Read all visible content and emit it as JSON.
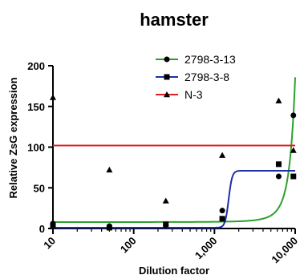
{
  "chart_data": {
    "type": "scatter",
    "title": "hamster",
    "xlabel": "Dilution factor",
    "ylabel": "Relative ZsG expression",
    "x_scale": "log",
    "xlim": [
      10,
      10000
    ],
    "ylim": [
      0,
      200
    ],
    "x_ticks": [
      10,
      100,
      1000,
      10000
    ],
    "x_tick_labels": [
      "10",
      "100",
      "1,000",
      "10,000"
    ],
    "y_ticks": [
      0,
      50,
      100,
      150,
      200
    ],
    "y_tick_labels": [
      "0",
      "50",
      "100",
      "150",
      "200"
    ],
    "grid": false,
    "legend_position": "top-right",
    "series": [
      {
        "name": "2798-3-13",
        "color": "#2ca02c",
        "marker": "circle",
        "points": [
          {
            "x": 10,
            "y": 6
          },
          {
            "x": 50,
            "y": 3
          },
          {
            "x": 250,
            "y": 4
          },
          {
            "x": 1250,
            "y": 22
          },
          {
            "x": 6250,
            "y": 64
          },
          {
            "x": 9500,
            "y": 139
          }
        ],
        "fit": "exponential",
        "fit_params": {
          "baseline": 7.5,
          "amplitude": 0.4,
          "rate": 0.00061
        }
      },
      {
        "name": "2798-3-8",
        "color": "#1f2fa8",
        "marker": "square",
        "points": [
          {
            "x": 10,
            "y": 4
          },
          {
            "x": 50,
            "y": 1
          },
          {
            "x": 250,
            "y": 5
          },
          {
            "x": 1250,
            "y": 12
          },
          {
            "x": 6250,
            "y": 79
          },
          {
            "x": 9500,
            "y": 64
          }
        ],
        "fit": "sigmoid",
        "fit_params": {
          "bottom": 1,
          "top": 71,
          "midpoint": 1500,
          "steepness": 20
        }
      },
      {
        "name": "N-3",
        "color": "#e02020",
        "marker": "triangle",
        "points": [
          {
            "x": 10,
            "y": 161
          },
          {
            "x": 50,
            "y": 72
          },
          {
            "x": 250,
            "y": 34
          },
          {
            "x": 1250,
            "y": 90
          },
          {
            "x": 6250,
            "y": 157
          },
          {
            "x": 9500,
            "y": 96
          }
        ],
        "fit": "constant",
        "fit_params": {
          "value": 102
        }
      }
    ]
  }
}
